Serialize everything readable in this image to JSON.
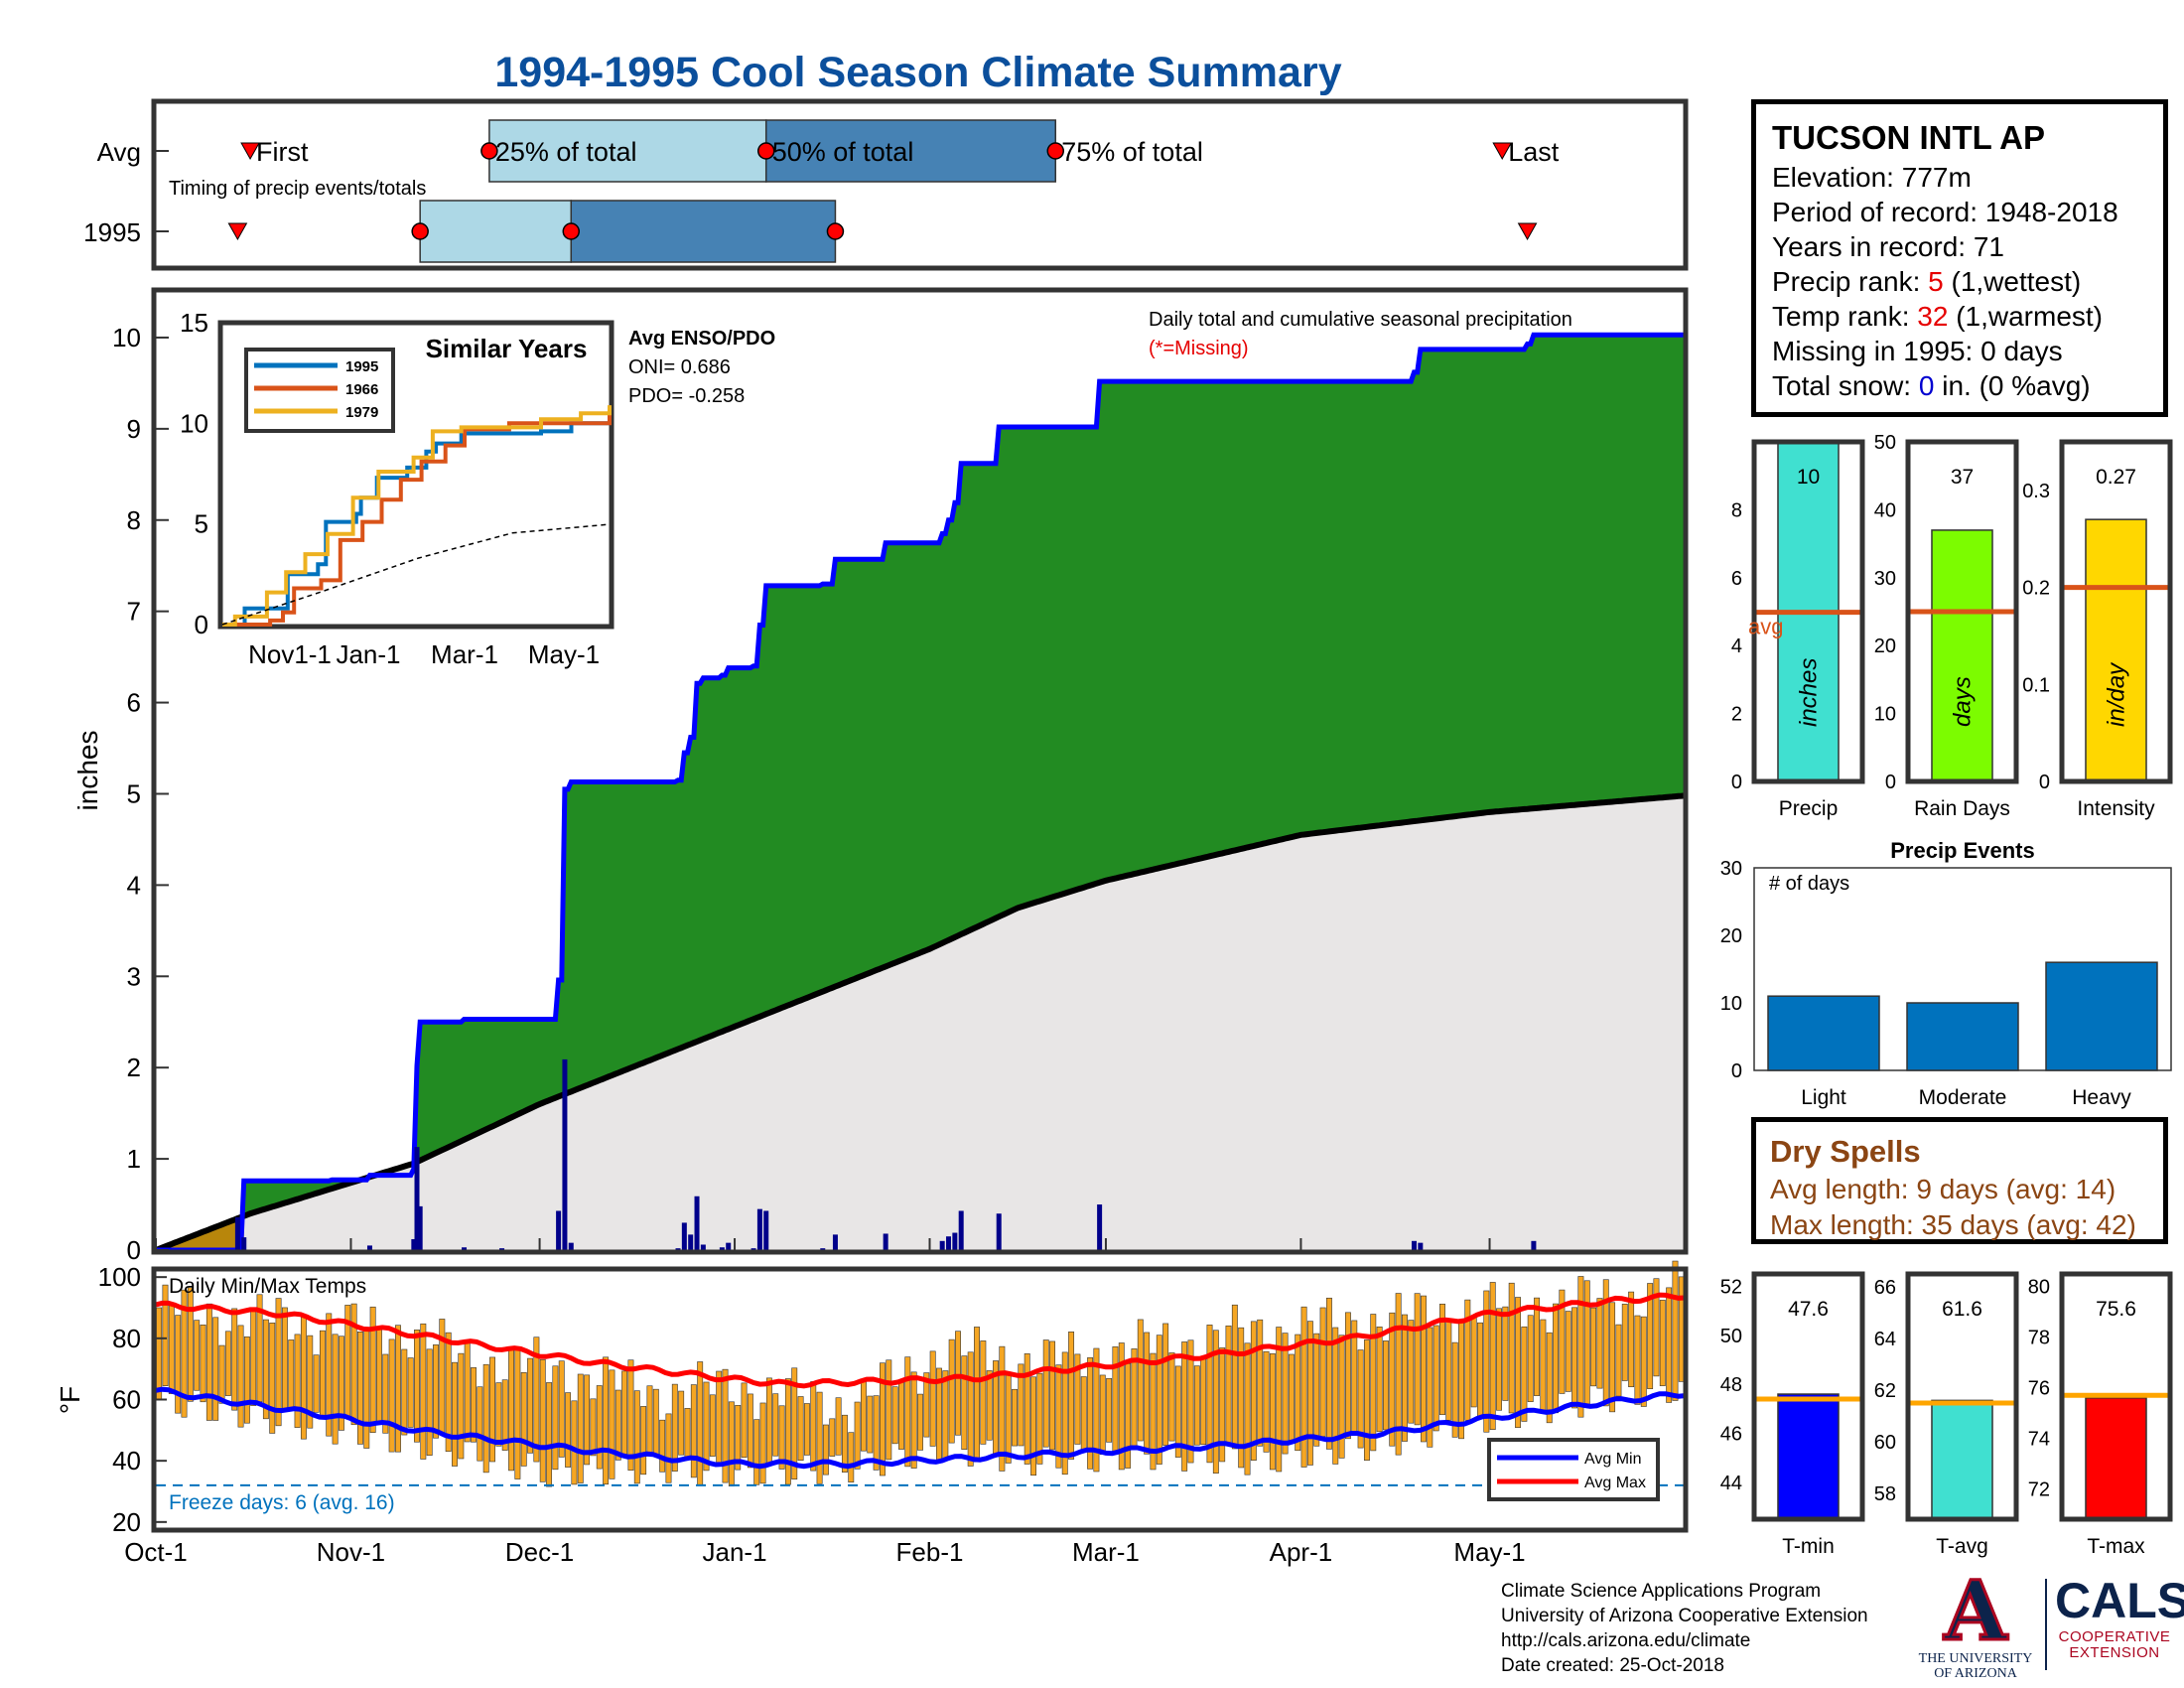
{
  "title": "1994-1995 Cool Season Climate Summary",
  "colors": {
    "title": "#0b4f9c",
    "precip_fill": "#228b22",
    "precip_line": "#0000ff",
    "avg_fill": "#e8e6e6",
    "deficit_fill": "#b8860b",
    "daily_bars": "#00008b",
    "temp_bars": "#f5a623",
    "avg_max_line": "#ff0000",
    "avg_min_line": "#0000ff",
    "timing_light": "#add8e6",
    "timing_dark": "#4682b4",
    "events_bars": "#0072bd",
    "orange_avg": "#d95319"
  },
  "timing": {
    "axis_min": 0,
    "axis_max": 243,
    "rows": [
      "Avg",
      "1995"
    ],
    "subtitle": "Timing of precip events/totals",
    "labels": {
      "first": "First",
      "p25": "25% of total",
      "p50": "50% of total",
      "p75": "75% of total",
      "last": "Last"
    },
    "avg": {
      "first": 15,
      "p25": 53,
      "p50": 97,
      "p75": 143,
      "last": 214
    },
    "year": {
      "first": 13,
      "p25": 42,
      "p50": 66,
      "p75": 108,
      "last": 218
    }
  },
  "station": {
    "name": "TUCSON INTL AP",
    "elevation_label": "Elevation: 777m",
    "period_label": "Period of record: 1948-2018",
    "years_label": "Years in record: 71",
    "precip_rank_prefix": "Precip rank: ",
    "precip_rank": "5",
    "precip_rank_suffix": " (1,wettest)",
    "temp_rank_prefix": "Temp rank: ",
    "temp_rank": "32",
    "temp_rank_suffix": " (1,warmest)",
    "missing_label": "Missing in 1995: 0 days",
    "snow_prefix": "Total snow: ",
    "snow_value": "0",
    "snow_suffix": " in. (0 %avg)"
  },
  "main_chart": {
    "ylabel": "inches",
    "legend_line1": "Daily total and cumulative seasonal precipitation",
    "legend_line2": "(*=Missing)",
    "y_ticks": [
      "0",
      "1",
      "2",
      "3",
      "4",
      "5",
      "6",
      "7",
      "8",
      "9",
      "10"
    ],
    "enso_title": "Avg ENSO/PDO",
    "oni_label": "ONI= 0.686",
    "pdo_label": "PDO= -0.258"
  },
  "chart_data": [
    {
      "type": "area",
      "title": "Daily total and cumulative seasonal precipitation",
      "ylabel": "inches",
      "ylim": [
        0,
        10.5
      ],
      "xlim_days": [
        0,
        243
      ],
      "x_tick_labels": [
        "Oct-1",
        "Nov-1",
        "Dec-1",
        "Jan-1",
        "Feb-1",
        "Mar-1",
        "Apr-1",
        "May-1"
      ],
      "x_tick_days": [
        0,
        31,
        61,
        92,
        123,
        151,
        182,
        212
      ],
      "cumulative_1995_steps": [
        [
          0,
          0
        ],
        [
          14,
          0.76
        ],
        [
          28,
          0.77
        ],
        [
          34,
          0.82
        ],
        [
          41,
          0.89
        ],
        [
          41.5,
          2.02
        ],
        [
          42,
          2.5
        ],
        [
          49,
          2.53
        ],
        [
          55,
          2.53
        ],
        [
          64,
          2.96
        ],
        [
          65,
          5.05
        ],
        [
          66,
          5.13
        ],
        [
          83,
          5.15
        ],
        [
          84,
          5.45
        ],
        [
          85,
          5.62
        ],
        [
          86,
          6.21
        ],
        [
          87,
          6.27
        ],
        [
          88,
          6.27
        ],
        [
          90,
          6.3
        ],
        [
          91,
          6.38
        ],
        [
          95,
          6.4
        ],
        [
          96,
          6.85
        ],
        [
          97,
          7.28
        ],
        [
          106,
          7.3
        ],
        [
          108,
          7.57
        ],
        [
          116,
          7.75
        ],
        [
          124,
          7.75
        ],
        [
          125,
          7.85
        ],
        [
          126,
          8.0
        ],
        [
          127,
          8.19
        ],
        [
          128,
          8.62
        ],
        [
          134,
          9.02
        ],
        [
          149,
          9.02
        ],
        [
          150,
          9.52
        ],
        [
          199,
          9.52
        ],
        [
          200,
          9.62
        ],
        [
          201,
          9.87
        ],
        [
          218,
          9.93
        ],
        [
          219,
          10.03
        ],
        [
          243,
          10.03
        ]
      ],
      "average_cumulative": [
        [
          0,
          0
        ],
        [
          15,
          0.4
        ],
        [
          41,
          0.95
        ],
        [
          61,
          1.6
        ],
        [
          92,
          2.45
        ],
        [
          123,
          3.3
        ],
        [
          137,
          3.75
        ],
        [
          151,
          4.05
        ],
        [
          182,
          4.55
        ],
        [
          212,
          4.8
        ],
        [
          243,
          4.98
        ]
      ],
      "daily_precip": [
        [
          13,
          0.36
        ],
        [
          14,
          0.14
        ],
        [
          34,
          0.05
        ],
        [
          41,
          0.12
        ],
        [
          41.5,
          1.13
        ],
        [
          42,
          0.48
        ],
        [
          49,
          0.03
        ],
        [
          55,
          0.02
        ],
        [
          64,
          0.43
        ],
        [
          65,
          2.09
        ],
        [
          66,
          0.08
        ],
        [
          83,
          0.02
        ],
        [
          84,
          0.3
        ],
        [
          85,
          0.17
        ],
        [
          86,
          0.59
        ],
        [
          87,
          0.06
        ],
        [
          90,
          0.03
        ],
        [
          91,
          0.08
        ],
        [
          95,
          0.02
        ],
        [
          96,
          0.45
        ],
        [
          97,
          0.43
        ],
        [
          106,
          0.02
        ],
        [
          108,
          0.17
        ],
        [
          116,
          0.18
        ],
        [
          125,
          0.1
        ],
        [
          126,
          0.15
        ],
        [
          127,
          0.19
        ],
        [
          128,
          0.43
        ],
        [
          134,
          0.4
        ],
        [
          150,
          0.5
        ],
        [
          200,
          0.1
        ],
        [
          201,
          0.08
        ],
        [
          219,
          0.1
        ]
      ]
    },
    {
      "type": "line",
      "title": "Similar Years",
      "xlim_days": [
        0,
        243
      ],
      "ylim": [
        0,
        15
      ],
      "y_ticks": [
        "0",
        "5",
        "10",
        "15"
      ],
      "x_tick_labels": [
        "Nov1-1",
        "Jan-1",
        "Mar-1",
        "May-1"
      ],
      "series": [
        {
          "name": "1995",
          "color": "#0072bd",
          "points": [
            [
              0,
              0
            ],
            [
              14,
              0.8
            ],
            [
              41,
              2.5
            ],
            [
              60,
              3
            ],
            [
              65,
              5.1
            ],
            [
              84,
              5.5
            ],
            [
              87,
              6.3
            ],
            [
              97,
              7.3
            ],
            [
              116,
              7.8
            ],
            [
              128,
              8.6
            ],
            [
              134,
              9.0
            ],
            [
              150,
              9.5
            ],
            [
              200,
              9.6
            ],
            [
              219,
              10.0
            ],
            [
              243,
              10.0
            ]
          ]
        },
        {
          "name": "1966",
          "color": "#d95319",
          "points": [
            [
              0,
              0
            ],
            [
              30,
              0.2
            ],
            [
              38,
              0.6
            ],
            [
              45,
              1.8
            ],
            [
              62,
              2.2
            ],
            [
              74,
              4.2
            ],
            [
              88,
              5.1
            ],
            [
              100,
              6.2
            ],
            [
              112,
              7.2
            ],
            [
              125,
              8.1
            ],
            [
              140,
              8.9
            ],
            [
              152,
              9.7
            ],
            [
              180,
              10.0
            ],
            [
              243,
              10.5
            ]
          ]
        },
        {
          "name": "1979",
          "color": "#edb120",
          "points": [
            [
              0,
              0
            ],
            [
              8,
              0.4
            ],
            [
              28,
              1.6
            ],
            [
              40,
              2.6
            ],
            [
              52,
              3.5
            ],
            [
              66,
              4.5
            ],
            [
              82,
              6.3
            ],
            [
              98,
              7.6
            ],
            [
              120,
              8.3
            ],
            [
              132,
              9.6
            ],
            [
              150,
              9.8
            ],
            [
              200,
              10.2
            ],
            [
              225,
              10.5
            ],
            [
              243,
              10.9
            ]
          ]
        },
        {
          "name": "average",
          "color": "#000000",
          "dashed": true,
          "points": [
            [
              0,
              0
            ],
            [
              61,
              1.6
            ],
            [
              123,
              3.3
            ],
            [
              182,
              4.55
            ],
            [
              243,
              4.98
            ]
          ]
        }
      ]
    },
    {
      "type": "bar",
      "title": "Daily Min/Max Temps",
      "ylabel": "°F",
      "ylim": [
        18,
        102
      ],
      "y_ticks": [
        "20",
        "40",
        "60",
        "80",
        "100"
      ],
      "xlim_days": [
        0,
        243
      ],
      "avg_max_points": [
        [
          0,
          91
        ],
        [
          20,
          88
        ],
        [
          45,
          80
        ],
        [
          70,
          72
        ],
        [
          90,
          67
        ],
        [
          100,
          65
        ],
        [
          115,
          66
        ],
        [
          130,
          67
        ],
        [
          150,
          71
        ],
        [
          170,
          75
        ],
        [
          190,
          80
        ],
        [
          212,
          88
        ],
        [
          230,
          92
        ],
        [
          243,
          94
        ]
      ],
      "avg_min_points": [
        [
          0,
          63
        ],
        [
          20,
          57
        ],
        [
          45,
          49
        ],
        [
          70,
          43
        ],
        [
          92,
          39
        ],
        [
          110,
          39
        ],
        [
          130,
          41
        ],
        [
          150,
          43
        ],
        [
          170,
          45
        ],
        [
          195,
          49
        ],
        [
          212,
          54
        ],
        [
          230,
          59
        ],
        [
          243,
          62
        ]
      ],
      "daily_max_anchors": [
        [
          0,
          90
        ],
        [
          15,
          86
        ],
        [
          40,
          82
        ],
        [
          48,
          74
        ],
        [
          62,
          70
        ],
        [
          80,
          62
        ],
        [
          92,
          64
        ],
        [
          110,
          58
        ],
        [
          125,
          76
        ],
        [
          140,
          72
        ],
        [
          160,
          78
        ],
        [
          175,
          82
        ],
        [
          195,
          86
        ],
        [
          212,
          90
        ],
        [
          228,
          92
        ],
        [
          243,
          96
        ]
      ],
      "daily_min_anchors": [
        [
          0,
          60
        ],
        [
          15,
          55
        ],
        [
          40,
          46
        ],
        [
          55,
          40
        ],
        [
          62,
          36
        ],
        [
          80,
          38
        ],
        [
          92,
          36
        ],
        [
          110,
          38
        ],
        [
          125,
          44
        ],
        [
          140,
          40
        ],
        [
          160,
          42
        ],
        [
          175,
          40
        ],
        [
          195,
          46
        ],
        [
          212,
          54
        ],
        [
          228,
          60
        ],
        [
          243,
          64
        ]
      ],
      "freeze_threshold": 32,
      "freeze_label": "Freeze days: 6 (avg. 16)",
      "legend": [
        "Avg Min",
        "Avg Max"
      ]
    },
    {
      "type": "bar",
      "title": "Precip",
      "ylim": [
        0,
        10
      ],
      "y_ticks": [
        "0",
        "2",
        "4",
        "6",
        "8"
      ],
      "value": 10,
      "value_label": "10",
      "avg": 4.98,
      "avg_label": "avg",
      "units": "inches",
      "color": "#40e0d0"
    },
    {
      "type": "bar",
      "title": "Rain Days",
      "ylim": [
        0,
        50
      ],
      "y_ticks": [
        "0",
        "10",
        "20",
        "30",
        "40",
        "50"
      ],
      "value": 37,
      "value_label": "37",
      "avg": 25,
      "units": "days",
      "color": "#7cfc00"
    },
    {
      "type": "bar",
      "title": "Intensity",
      "ylim": [
        0,
        0.35
      ],
      "y_ticks": [
        "0",
        "0.1",
        "0.2",
        "0.3"
      ],
      "value": 0.27,
      "value_label": "0.27",
      "avg": 0.2,
      "units": "in/day",
      "color": "#ffd700"
    },
    {
      "type": "bar",
      "title": "Precip Events",
      "ylabel": "# of days",
      "ylim": [
        0,
        30
      ],
      "y_ticks": [
        "0",
        "10",
        "20",
        "30"
      ],
      "categories": [
        "Light",
        "Moderate",
        "Heavy"
      ],
      "values": [
        11,
        10,
        16
      ]
    },
    {
      "type": "bar",
      "title": "T-min",
      "ylim": [
        42.5,
        52.5
      ],
      "y_ticks": [
        "44",
        "46",
        "48",
        "50",
        "52"
      ],
      "value": 47.6,
      "value_label": "47.6",
      "avg": 47.4,
      "color": "#0000ff"
    },
    {
      "type": "bar",
      "title": "T-avg",
      "ylim": [
        57,
        66.5
      ],
      "y_ticks": [
        "58",
        "60",
        "62",
        "64",
        "66"
      ],
      "value": 61.6,
      "value_label": "61.6",
      "avg": 61.5,
      "color": "#40e0d0"
    },
    {
      "type": "bar",
      "title": "T-max",
      "ylim": [
        70.8,
        80.5
      ],
      "y_ticks": [
        "72",
        "74",
        "76",
        "78",
        "80"
      ],
      "value": 75.6,
      "value_label": "75.6",
      "avg": 75.7,
      "color": "#ff0000"
    }
  ],
  "dry_spells": {
    "title": "Dry Spells",
    "avg_label": "Avg length: 9 days (avg: 14)",
    "max_label": "Max length: 35 days (avg: 42)"
  },
  "footer": {
    "line1": "Climate Science Applications Program",
    "line2": "University of Arizona Cooperative Extension",
    "line3": "http://cals.arizona.edu/climate",
    "line4": " Date created: 25-Oct-2018"
  },
  "logos": {
    "ua_letter": "A",
    "ua_line1": "THE UNIVERSITY",
    "ua_line2": "OF ARIZONA",
    "cals_name": "CALS",
    "cals_sub1": "COOPERATIVE",
    "cals_sub2": "EXTENSION"
  }
}
